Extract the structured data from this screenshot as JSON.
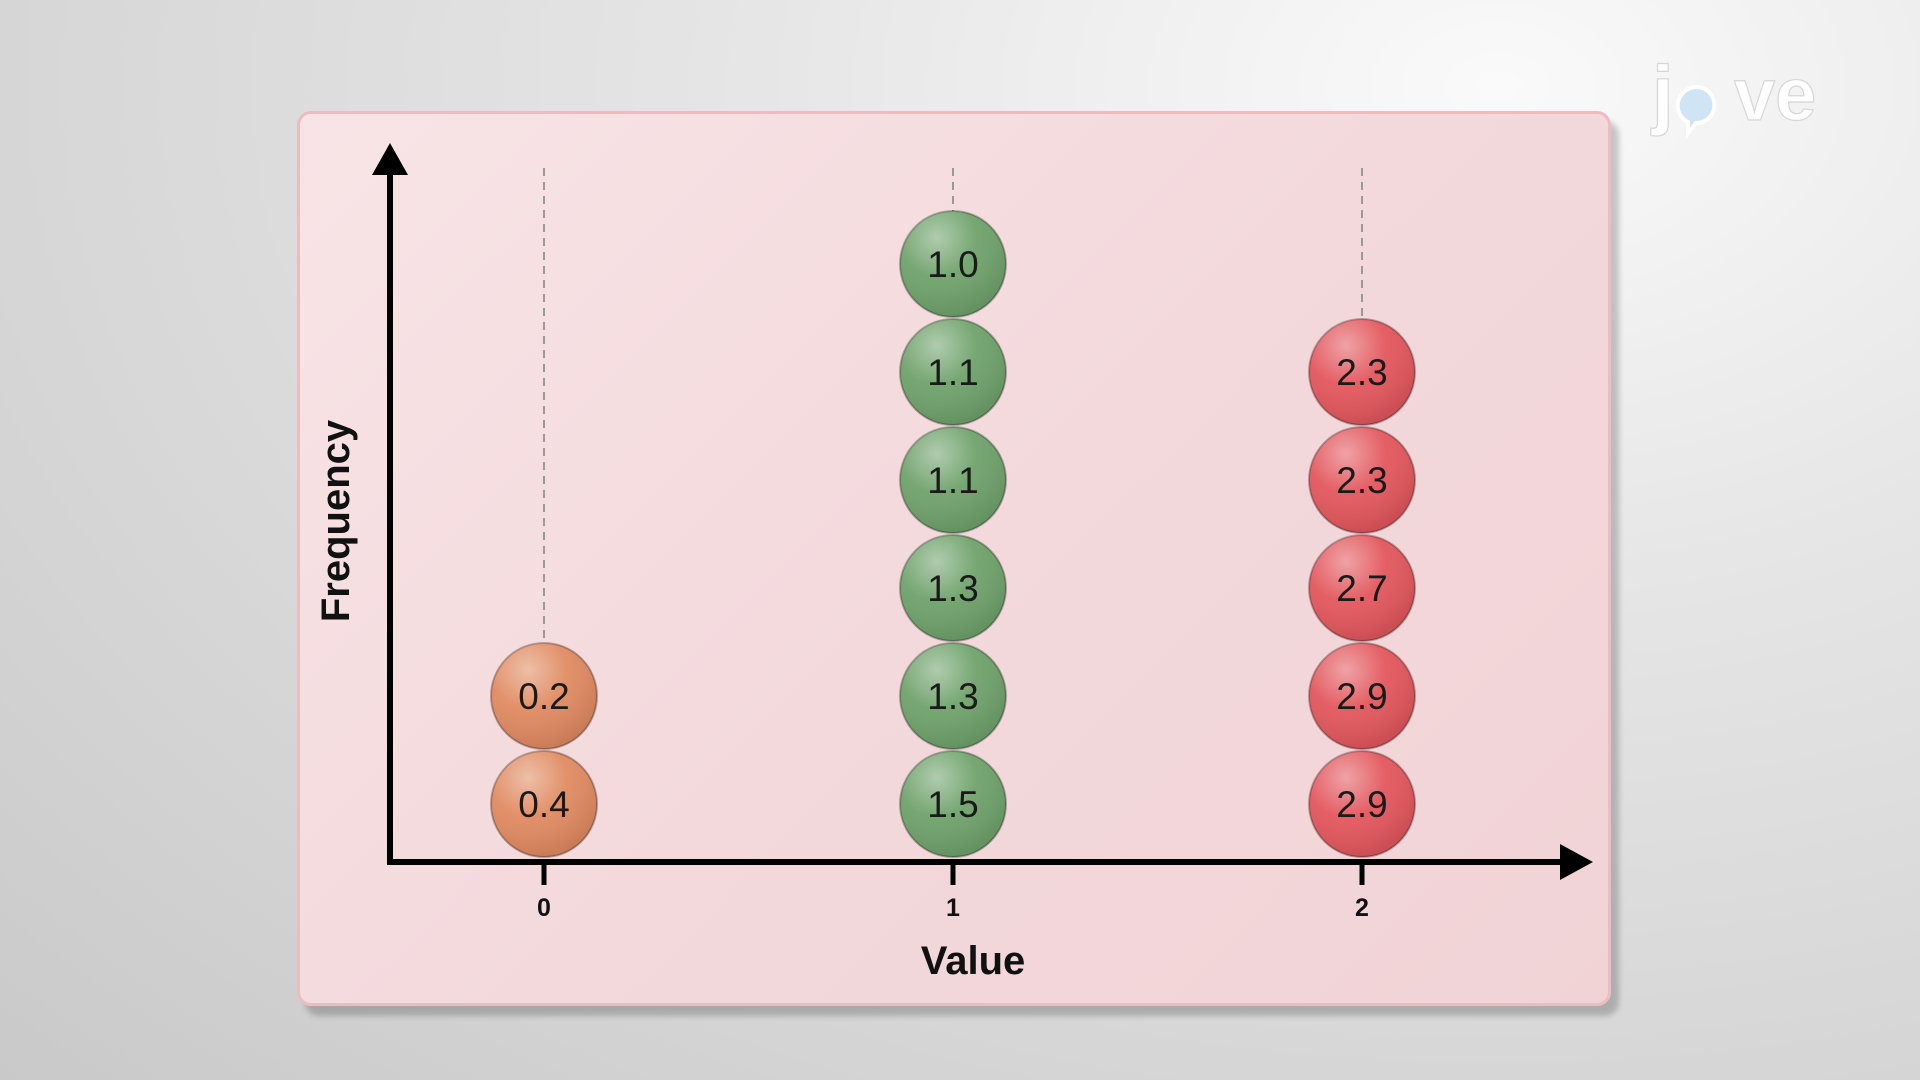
{
  "branding": {
    "logo_text": "jove"
  },
  "chart_data": {
    "type": "scatter",
    "title": "",
    "xlabel": "Value",
    "ylabel": "Frequency",
    "x_ticks": [
      "0",
      "1",
      "2"
    ],
    "groups": [
      {
        "x": 0,
        "color": "#e08a61",
        "values": [
          "0.4",
          "0.2"
        ]
      },
      {
        "x": 1,
        "color": "#6fa26b",
        "values": [
          "1.5",
          "1.3",
          "1.3",
          "1.1",
          "1.1",
          "1.0"
        ]
      },
      {
        "x": 2,
        "color": "#e2575d",
        "values": [
          "2.9",
          "2.9",
          "2.7",
          "2.3",
          "2.3"
        ]
      }
    ],
    "grid": false,
    "guide_lines": "dashed-vertical"
  }
}
